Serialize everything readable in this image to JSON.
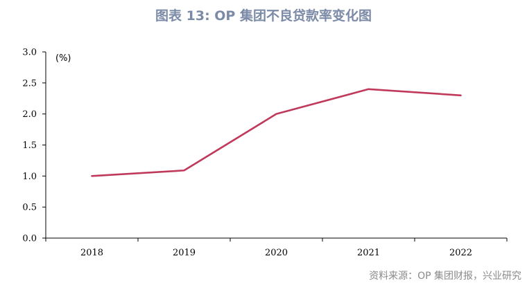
{
  "title": "图表 13: OP 集团不良贷款率变化图",
  "source": "资料来源：OP 集团财报，兴业研究",
  "chart_data": {
    "type": "line",
    "unit": "(%)",
    "categories": [
      "2018",
      "2019",
      "2020",
      "2021",
      "2022"
    ],
    "series": [
      {
        "values": [
          1.0,
          1.09,
          2.0,
          2.4,
          2.3
        ],
        "color": "#c0395b"
      }
    ],
    "ylim": [
      0,
      3.0
    ],
    "yticks": [
      "0.0",
      "0.5",
      "1.0",
      "1.5",
      "2.0",
      "2.5",
      "3.0"
    ],
    "grid": false,
    "legend": "none"
  }
}
